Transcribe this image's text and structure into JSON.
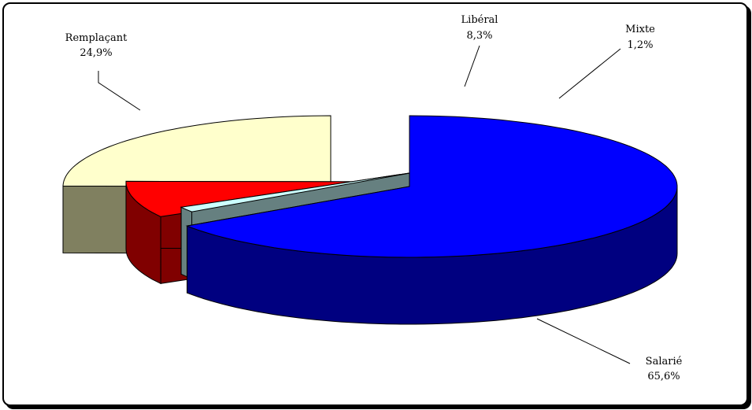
{
  "chart_data": {
    "type": "pie",
    "title": "",
    "three_d": true,
    "exploded": true,
    "slices": [
      {
        "label": "Remplaçant",
        "value": 24.9,
        "value_label": "24,9%",
        "color": "#ffffcc",
        "side_color": "#808060"
      },
      {
        "label": "Libéral",
        "value": 8.3,
        "value_label": "8,3%",
        "color": "#ff0000",
        "side_color": "#800000"
      },
      {
        "label": "Mixte",
        "value": 1.2,
        "value_label": "1,2%",
        "color": "#ccffff",
        "side_color": "#668080"
      },
      {
        "label": "Salarié",
        "value": 65.6,
        "value_label": "65,6%",
        "color": "#0000ff",
        "side_color": "#000080"
      }
    ]
  }
}
